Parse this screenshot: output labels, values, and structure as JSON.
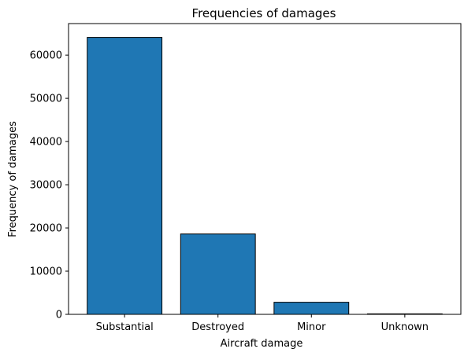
{
  "chart_data": {
    "type": "bar",
    "title": "Frequencies of damages",
    "xlabel": "Aircraft damage",
    "ylabel": "Frequency of damages",
    "categories": [
      "Substantial",
      "Destroyed",
      "Minor",
      "Unknown"
    ],
    "values": [
      64100,
      18600,
      2800,
      120
    ],
    "ylim": [
      0,
      67300
    ],
    "yticks": [
      0,
      10000,
      20000,
      30000,
      40000,
      50000,
      60000
    ],
    "grid": false,
    "bar_color": "#1f77b4",
    "bar_edge_color": "#000000"
  }
}
